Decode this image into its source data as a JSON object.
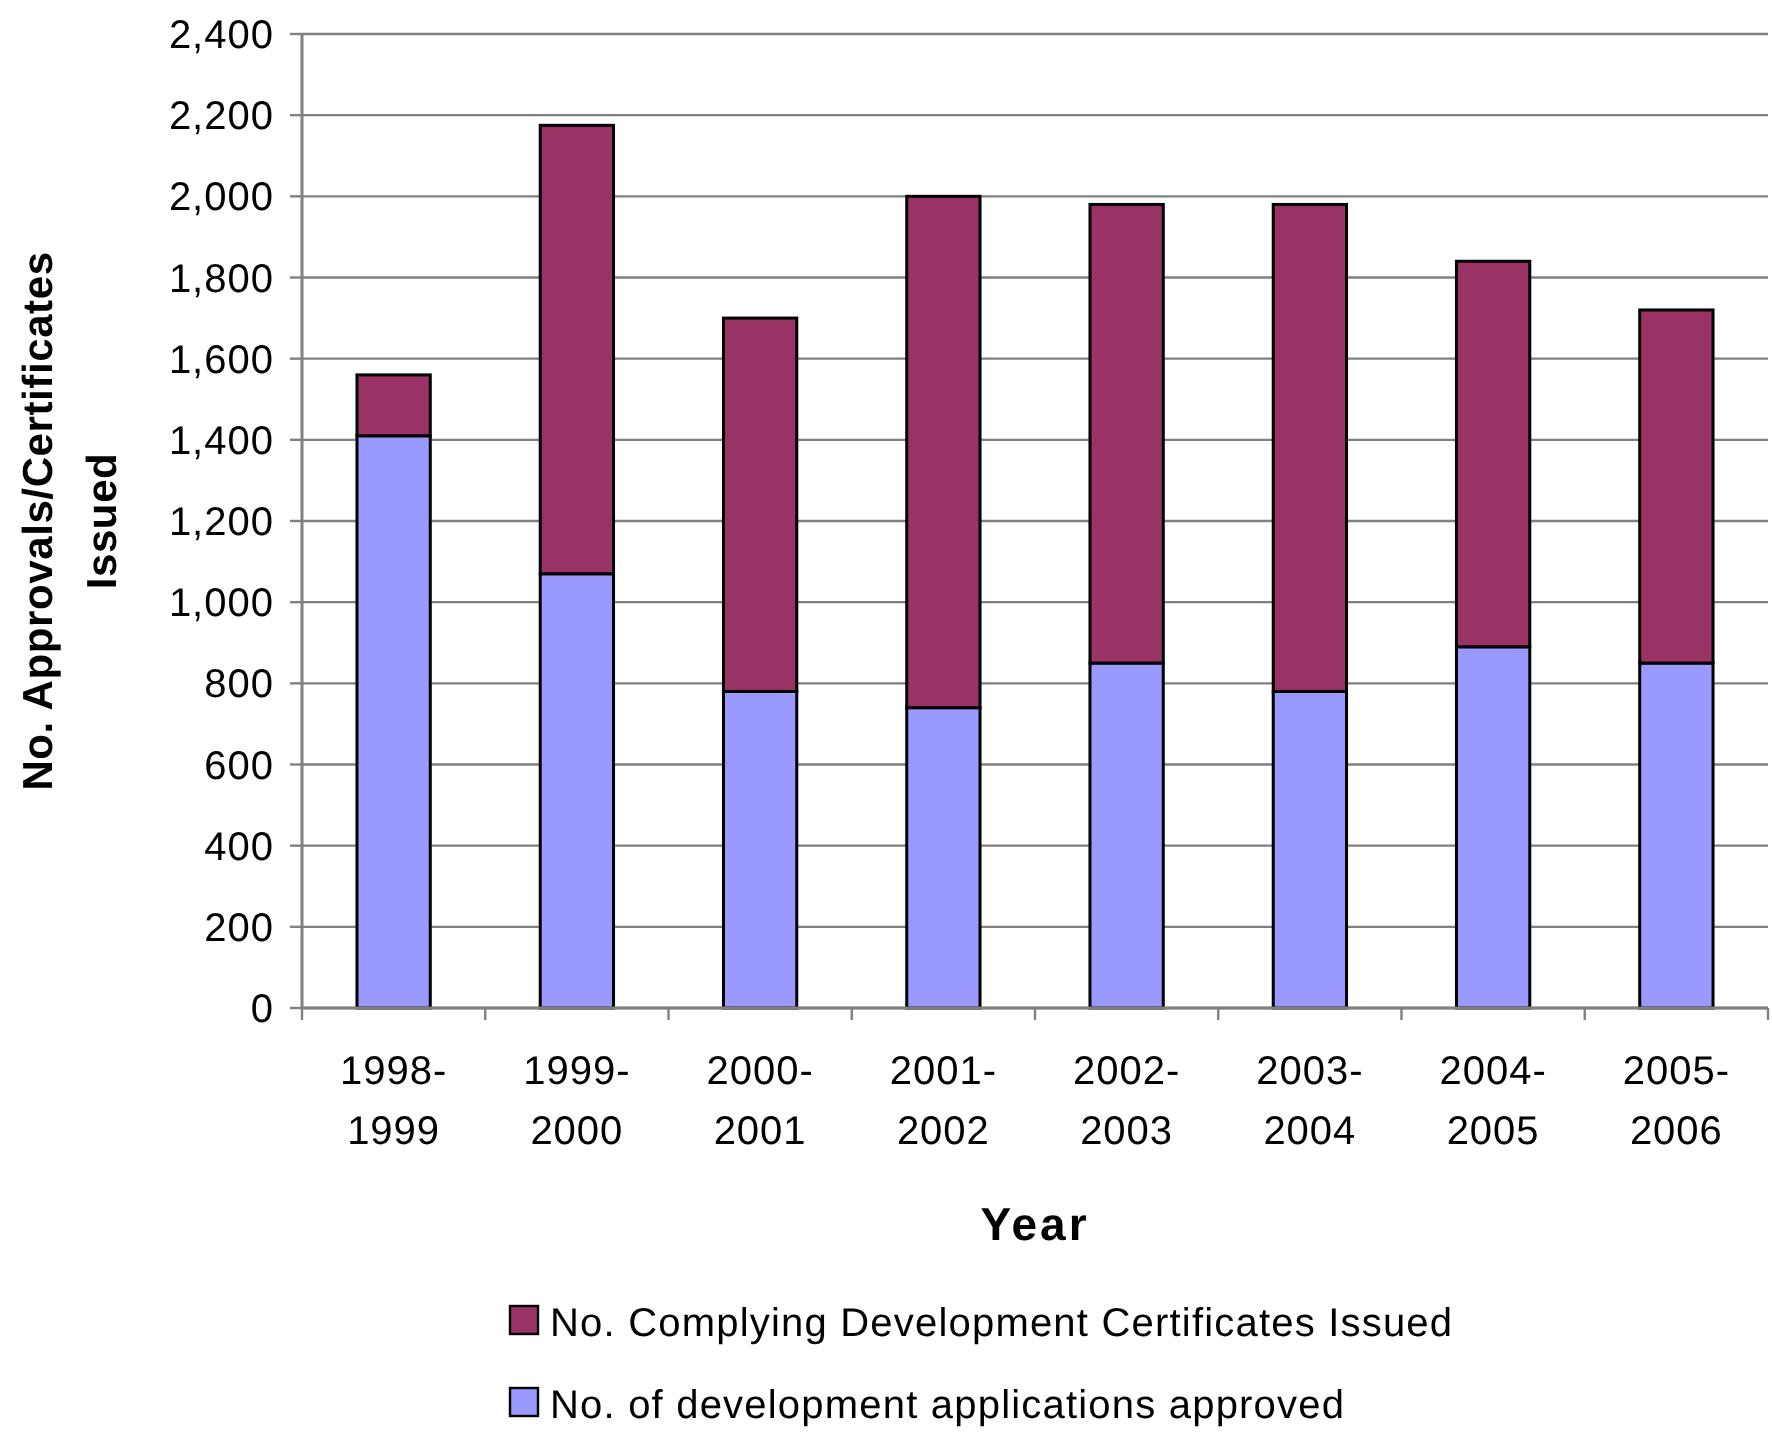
{
  "chart_data": {
    "type": "bar",
    "stacked": true,
    "categories": [
      "1998-1999",
      "1999-2000",
      "2000-2001",
      "2001-2002",
      "2002-2003",
      "2003-2004",
      "2004-2005",
      "2005-2006"
    ],
    "series": [
      {
        "name": "No. of development applications approved",
        "color": "#9999ff",
        "values": [
          1410,
          1070,
          780,
          740,
          850,
          780,
          890,
          850
        ]
      },
      {
        "name": "No. Complying Development Certificates Issued",
        "color": "#993366",
        "values": [
          150,
          1105,
          920,
          1260,
          1130,
          1200,
          950,
          870
        ]
      }
    ],
    "xlabel": "Year",
    "ylabel": "No. Approvals/Certificates Issued",
    "ylim": [
      0,
      2400
    ],
    "yticks": [
      0,
      200,
      400,
      600,
      800,
      {
        "value": 1000,
        "label": "1,000"
      },
      {
        "value": 1200,
        "label": "1,200"
      },
      {
        "value": 1400,
        "label": "1,400"
      },
      {
        "value": 1600,
        "label": "1,600"
      },
      {
        "value": 1800,
        "label": "1,800"
      },
      {
        "value": 2000,
        "label": "2,000"
      },
      {
        "value": 2200,
        "label": "2,200"
      },
      {
        "value": 2400,
        "label": "2,400"
      }
    ],
    "grid": "y",
    "legend": "bottom"
  }
}
